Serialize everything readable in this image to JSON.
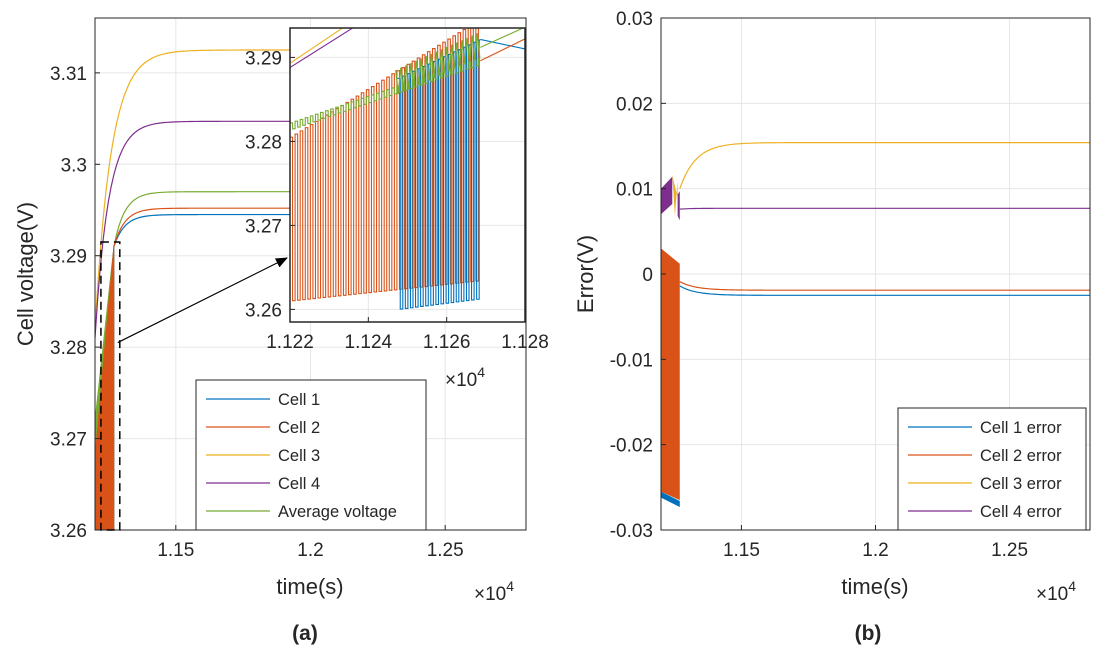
{
  "chart_data": [
    {
      "type": "line",
      "panel_label": "(a)",
      "xlabel": "time(s)",
      "ylabel": "Cell voltage(V)",
      "x_multiplier": "10",
      "x_multiplier_exp": "4",
      "xlim": [
        1.12,
        1.28
      ],
      "ylim": [
        3.26,
        3.316
      ],
      "xticks": [
        1.15,
        1.2,
        1.25
      ],
      "xtick_labels": [
        "1.15",
        "1.2",
        "1.25"
      ],
      "yticks": [
        3.26,
        3.27,
        3.28,
        3.29,
        3.3,
        3.31
      ],
      "ytick_labels": [
        "3.26",
        "3.27",
        "3.28",
        "3.29",
        "3.3",
        "3.31"
      ],
      "grid": true,
      "legend_position": "bottom-right",
      "x_end_balancing": 1.127,
      "series": [
        {
          "name": "Cell 1",
          "color": "#0072BD",
          "start": 3.267,
          "final": 3.2945,
          "tau": 0.004
        },
        {
          "name": "Cell 2",
          "color": "#D95319",
          "start": 3.268,
          "final": 3.2952,
          "tau": 0.004
        },
        {
          "name": "Cell 3",
          "color": "#EDB120",
          "start": 3.282,
          "final": 3.3125,
          "tau": 0.006
        },
        {
          "name": "Cell 4",
          "color": "#7E2F8E",
          "start": 3.281,
          "final": 3.3047,
          "tau": 0.005
        },
        {
          "name": "Average voltage",
          "color": "#77AC30",
          "start": 3.272,
          "final": 3.297,
          "tau": 0.004
        }
      ],
      "zoom_box": {
        "xlim": [
          1.1222,
          1.1292
        ],
        "ylim": [
          3.26,
          3.2915
        ]
      },
      "inset": {
        "xlim": [
          1.122,
          1.128
        ],
        "ylim": [
          3.2585,
          3.2935
        ],
        "xticks": [
          1.122,
          1.124,
          1.126,
          1.128
        ],
        "xtick_labels": [
          "1.122",
          "1.124",
          "1.126",
          "1.128"
        ],
        "yticks": [
          3.26,
          3.27,
          3.28,
          3.29
        ],
        "ytick_labels": [
          "3.26",
          "3.27",
          "3.28",
          "3.29"
        ],
        "x_multiplier": "10",
        "x_multiplier_exp": "4"
      }
    },
    {
      "type": "line",
      "panel_label": "(b)",
      "xlabel": "time(s)",
      "ylabel": "Error(V)",
      "x_multiplier": "10",
      "x_multiplier_exp": "4",
      "xlim": [
        1.12,
        1.28
      ],
      "ylim": [
        -0.03,
        0.03
      ],
      "xticks": [
        1.15,
        1.2,
        1.25
      ],
      "xtick_labels": [
        "1.15",
        "1.2",
        "1.25"
      ],
      "yticks": [
        -0.03,
        -0.02,
        -0.01,
        0,
        0.01,
        0.02,
        0.03
      ],
      "ytick_labels": [
        "-0.03",
        "-0.02",
        "-0.01",
        "0",
        "0.01",
        "0.02",
        "0.03"
      ],
      "grid": true,
      "legend_position": "bottom-right",
      "series": [
        {
          "name": "Cell 1 error",
          "color": "#0072BD",
          "final": -0.0025
        },
        {
          "name": "Cell 2 error",
          "color": "#D95319",
          "final": -0.0019
        },
        {
          "name": "Cell 3 error",
          "color": "#EDB120",
          "final": 0.0154
        },
        {
          "name": "Cell 4 error",
          "color": "#7E2F8E",
          "final": 0.0077
        }
      ]
    }
  ]
}
